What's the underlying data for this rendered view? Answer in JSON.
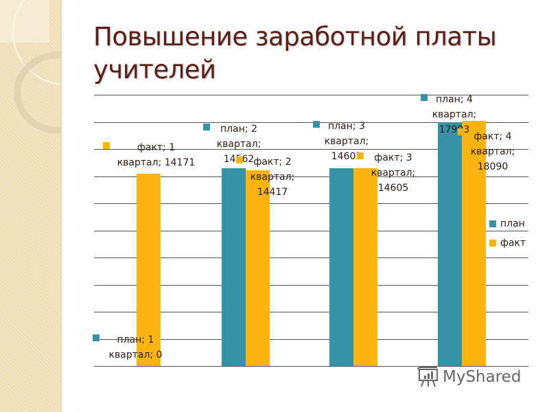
{
  "slide": {
    "title_line1": "Повышение заработной платы",
    "title_line2": "учителей"
  },
  "colors": {
    "plan": "#3592a7",
    "fact": "#fbb410",
    "title": "#5a1f16",
    "grid": "#555555"
  },
  "legend": {
    "plan": "план",
    "fact": "факт"
  },
  "labels": {
    "q1_plan": "план; 1\nквартал; 0",
    "q1_fact": "факт; 1\nквартал; 14171",
    "q2_plan": "план; 2\nквартал;\n14562",
    "q2_fact": "факт; 2\nквартал;\n14417",
    "q3_plan": "план; 3\nквартал;\n14602",
    "q3_fact": "факт; 3\nквартал;\n14605",
    "q4_plan": "план; 4\nквартал;\n17993",
    "q4_fact": "факт; 4\nквартал;\n18090"
  },
  "watermark": {
    "text": "MyShared"
  },
  "chart_data": {
    "type": "bar",
    "title": "Повышение заработной платы учителей",
    "categories": [
      "1 квартал",
      "2 квартал",
      "3 квартал",
      "4 квартал"
    ],
    "series": [
      {
        "name": "план",
        "color": "#3592a7",
        "values": [
          0,
          14562,
          14602,
          17993
        ]
      },
      {
        "name": "факт",
        "color": "#fbb410",
        "values": [
          14171,
          14417,
          14605,
          18090
        ]
      }
    ],
    "xlabel": "",
    "ylabel": "",
    "ylim": [
      0,
      20000
    ],
    "grid_step": 2000,
    "grid": true,
    "axis_labels_visible": false,
    "legend_position": "right",
    "data_labels": "series; category; value"
  }
}
